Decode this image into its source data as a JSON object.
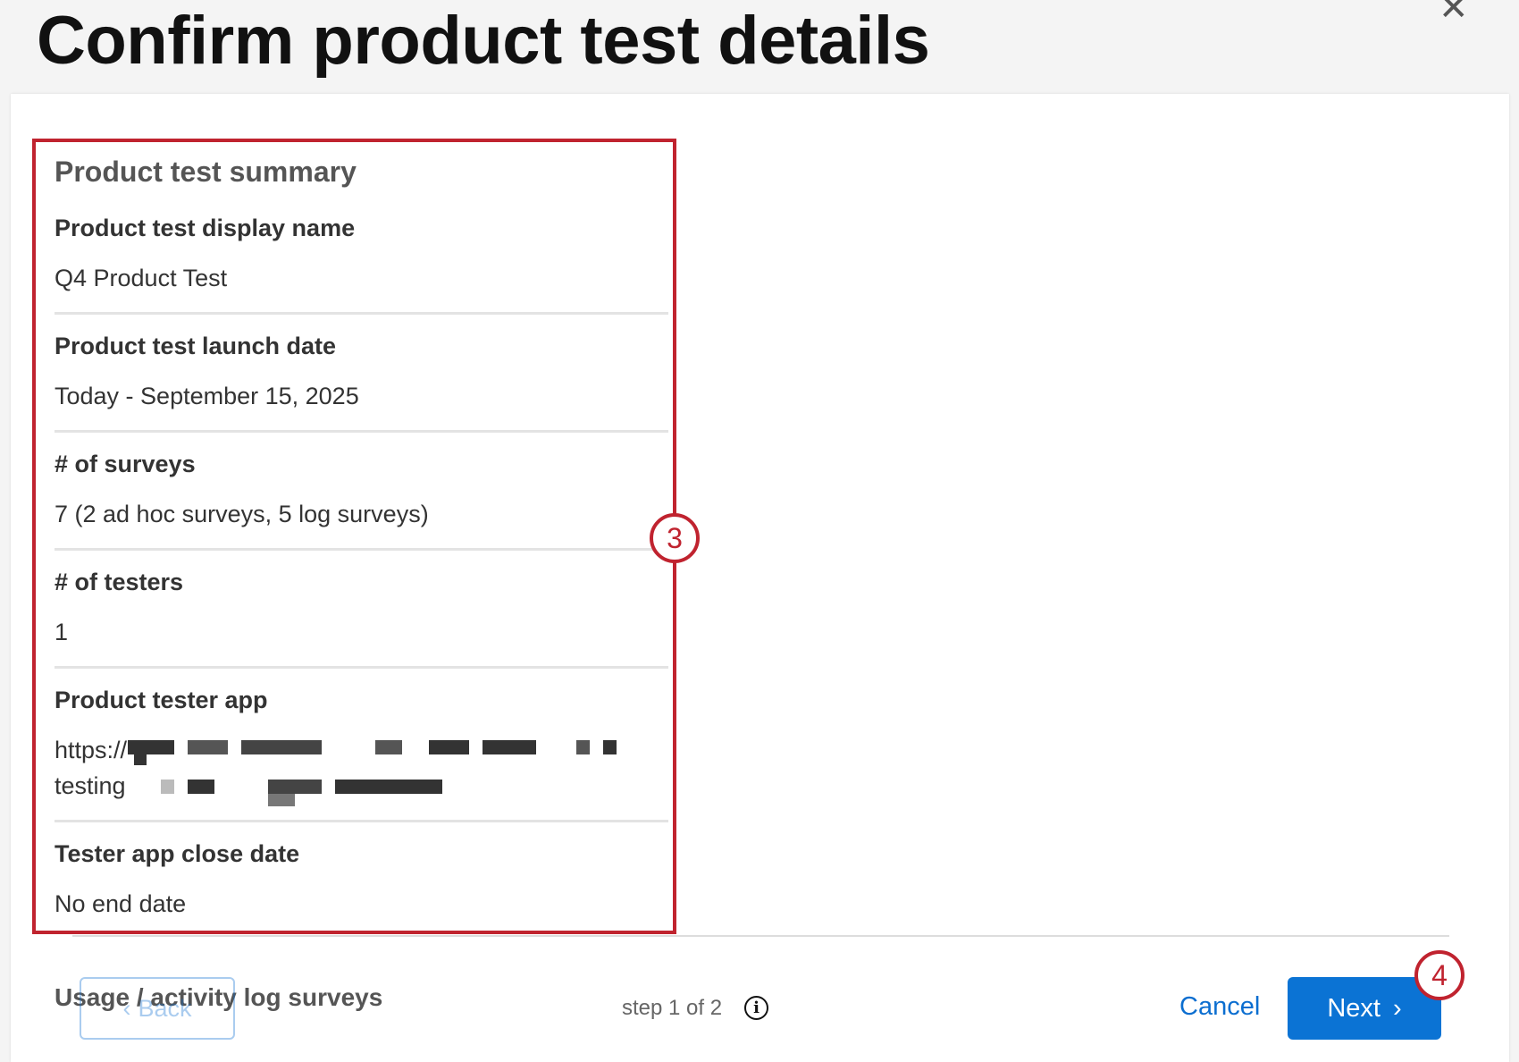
{
  "dialog": {
    "title": "Confirm product test details",
    "close_icon": "close-icon"
  },
  "summary": {
    "heading": "Product test summary",
    "fields": [
      {
        "label": "Product test display name",
        "value": "Q4 Product Test"
      },
      {
        "label": "Product test launch date",
        "value": "Today - September 15, 2025"
      },
      {
        "label": "# of surveys",
        "value": "7 (2 ad hoc surveys, 5 log surveys)"
      },
      {
        "label": "# of testers",
        "value": "1"
      },
      {
        "label": "Product tester app",
        "value_line1": "https://",
        "value_line2": "testing"
      },
      {
        "label": "Tester app close date",
        "value": "No end date"
      }
    ]
  },
  "annotations": {
    "callout_3": "3",
    "callout_4": "4",
    "highlight_color": "#c0232f"
  },
  "footer": {
    "section_label": "Usage / activity log surveys",
    "back_label": "Back",
    "step_text": "step 1 of 2",
    "info_icon": "i",
    "cancel_label": "Cancel",
    "next_label": "Next",
    "accent_color": "#0b73d4"
  }
}
